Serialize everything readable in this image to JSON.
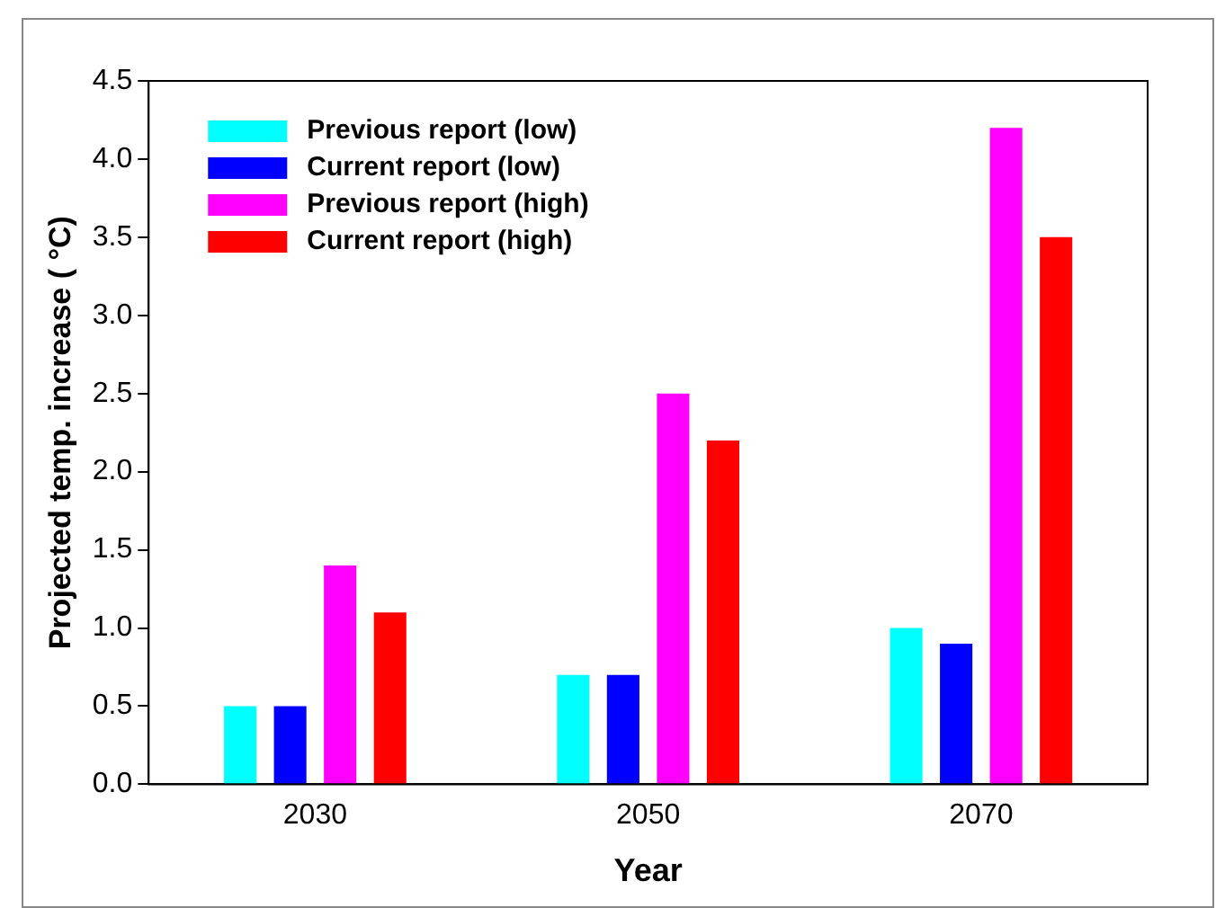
{
  "chart_data": {
    "type": "bar",
    "xlabel": "Year",
    "ylabel": "Projected temp. increase ( °C)",
    "categories": [
      "2030",
      "2050",
      "2070"
    ],
    "series": [
      {
        "name": "Previous report (low)",
        "color": "#00ffff",
        "values": [
          0.5,
          0.7,
          1.0
        ]
      },
      {
        "name": "Current report (low)",
        "color": "#0000ff",
        "values": [
          0.5,
          0.7,
          0.9
        ]
      },
      {
        "name": "Previous report (high)",
        "color": "#ff00ff",
        "values": [
          1.4,
          2.5,
          4.2
        ]
      },
      {
        "name": "Current report (high)",
        "color": "#ff0000",
        "values": [
          1.1,
          2.2,
          3.5
        ]
      }
    ],
    "ylim": [
      0,
      4.5
    ],
    "yticks": [
      {
        "value": 0,
        "label": "0.0"
      },
      {
        "value": 0.5,
        "label": "0.5"
      },
      {
        "value": 1,
        "label": "1.0"
      },
      {
        "value": 1.5,
        "label": "1.5"
      },
      {
        "value": 2,
        "label": "2.0"
      },
      {
        "value": 2.5,
        "label": "2.5"
      },
      {
        "value": 3,
        "label": "3.0"
      },
      {
        "value": 3.5,
        "label": "3.5"
      },
      {
        "value": 4,
        "label": "4.0"
      },
      {
        "value": 4.5,
        "label": "4.5"
      }
    ],
    "grid": false,
    "legend": "top left"
  }
}
